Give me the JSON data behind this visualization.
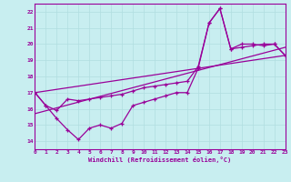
{
  "bg_color": "#c8eef0",
  "line_color": "#990099",
  "grid_color": "#b0dde0",
  "xlabel": "Windchill (Refroidissement éolien,°C)",
  "xlim": [
    0,
    23
  ],
  "ylim": [
    13.5,
    22.5
  ],
  "yticks": [
    14,
    15,
    16,
    17,
    18,
    19,
    20,
    21,
    22
  ],
  "xticks": [
    0,
    1,
    2,
    3,
    4,
    5,
    6,
    7,
    8,
    9,
    10,
    11,
    12,
    13,
    14,
    15,
    16,
    17,
    18,
    19,
    20,
    21,
    22,
    23
  ],
  "line1_x": [
    0,
    1,
    2,
    3,
    4,
    5,
    6,
    7,
    8,
    9,
    10,
    11,
    12,
    13,
    14,
    15,
    16,
    17,
    18,
    19,
    20,
    21,
    22,
    23
  ],
  "line1_y": [
    17.0,
    16.2,
    15.4,
    14.7,
    14.1,
    14.8,
    15.0,
    14.8,
    15.1,
    16.2,
    16.4,
    16.6,
    16.8,
    17.0,
    17.0,
    18.5,
    21.3,
    22.2,
    19.7,
    20.0,
    20.0,
    19.9,
    20.0,
    19.3
  ],
  "line2_x": [
    0,
    1,
    2,
    3,
    4,
    5,
    6,
    7,
    8,
    9,
    10,
    11,
    12,
    13,
    14,
    15,
    16,
    17,
    18,
    19,
    20,
    21,
    22,
    23
  ],
  "line2_y": [
    17.0,
    16.2,
    15.9,
    16.6,
    16.5,
    16.6,
    16.7,
    16.8,
    16.9,
    17.1,
    17.3,
    17.4,
    17.5,
    17.6,
    17.7,
    18.6,
    21.3,
    22.2,
    19.7,
    19.8,
    19.9,
    20.0,
    20.0,
    19.3
  ],
  "line3_x": [
    0,
    23
  ],
  "line3_y": [
    17.0,
    19.3
  ],
  "line4_x": [
    0,
    23
  ],
  "line4_y": [
    15.7,
    19.8
  ]
}
